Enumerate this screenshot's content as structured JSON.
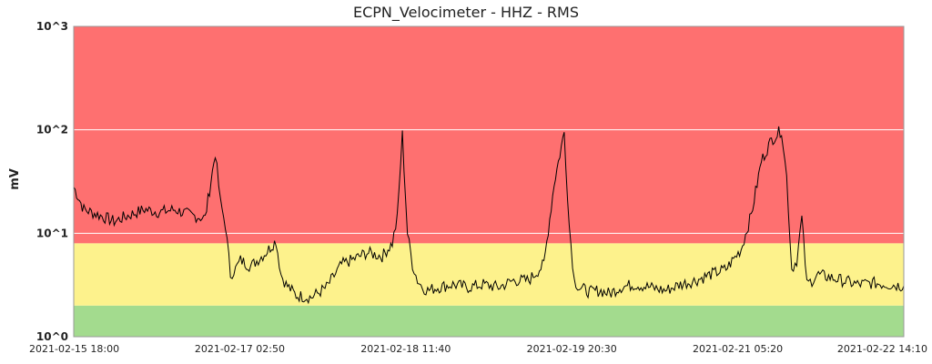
{
  "chart_data": {
    "type": "line",
    "title": "ECPN_Velocimeter - HHZ - RMS",
    "ylabel": "mV",
    "xlabel": "",
    "yscale": "log",
    "ylim": [
      1,
      1000
    ],
    "xlim": [
      "2021-02-15 18:00",
      "2021-02-22 14:10"
    ],
    "yticks": [
      {
        "value": 1,
        "label": "10^0"
      },
      {
        "value": 10,
        "label": "10^1"
      },
      {
        "value": 100,
        "label": "10^2"
      },
      {
        "value": 1000,
        "label": "10^3"
      }
    ],
    "xticks": [
      {
        "value": "2021-02-15 18:00",
        "label": "2021-02-15 18:00"
      },
      {
        "value": "2021-02-17 02:50",
        "label": "2021-02-17 02:50"
      },
      {
        "value": "2021-02-18 11:40",
        "label": "2021-02-18 11:40"
      },
      {
        "value": "2021-02-19 20:30",
        "label": "2021-02-19 20:30"
      },
      {
        "value": "2021-02-21 05:20",
        "label": "2021-02-21 05:20"
      },
      {
        "value": "2021-02-22 14:10",
        "label": "2021-02-22 14:10"
      }
    ],
    "bands": [
      {
        "from": 1,
        "to": 2,
        "color": "#a3db8e"
      },
      {
        "from": 2,
        "to": 8,
        "color": "#fdf28c"
      },
      {
        "from": 8,
        "to": 1000,
        "color": "#fe7070"
      }
    ],
    "grid": true,
    "line_color": "#000000",
    "series": [
      {
        "x": [
          "2021-02-15 18:00",
          "2021-02-15 20:00",
          "2021-02-15 23:00",
          "2021-02-16 02:00",
          "2021-02-16 05:00",
          "2021-02-16 08:00",
          "2021-02-16 11:00",
          "2021-02-16 14:00",
          "2021-02-16 17:00",
          "2021-02-16 20:00",
          "2021-02-16 22:00",
          "2021-02-16 23:00",
          "2021-02-17 00:00",
          "2021-02-17 01:00",
          "2021-02-17 02:00",
          "2021-02-17 03:00",
          "2021-02-17 05:00",
          "2021-02-17 08:00",
          "2021-02-17 10:00",
          "2021-02-17 11:00",
          "2021-02-17 12:00",
          "2021-02-17 14:00",
          "2021-02-17 17:00",
          "2021-02-17 20:00",
          "2021-02-17 23:00",
          "2021-02-18 01:00",
          "2021-02-18 04:00",
          "2021-02-18 07:00",
          "2021-02-18 09:00",
          "2021-02-18 10:00",
          "2021-02-18 11:00",
          "2021-02-18 12:00",
          "2021-02-18 13:00",
          "2021-02-18 14:00",
          "2021-02-18 15:00",
          "2021-02-18 16:00",
          "2021-02-18 18:00",
          "2021-02-18 21:00",
          "2021-02-19 00:00",
          "2021-02-19 03:00",
          "2021-02-19 06:00",
          "2021-02-19 09:00",
          "2021-02-19 12:00",
          "2021-02-19 15:00",
          "2021-02-19 17:00",
          "2021-02-19 19:00",
          "2021-02-19 20:00",
          "2021-02-19 21:00",
          "2021-02-19 22:00",
          "2021-02-20 00:00",
          "2021-02-20 02:00",
          "2021-02-20 04:00",
          "2021-02-20 06:00",
          "2021-02-20 09:00",
          "2021-02-20 12:00",
          "2021-02-20 15:00",
          "2021-02-20 18:00",
          "2021-02-20 21:00",
          "2021-02-21 00:00",
          "2021-02-21 03:00",
          "2021-02-21 06:00",
          "2021-02-21 08:00",
          "2021-02-21 10:00",
          "2021-02-21 12:00",
          "2021-02-21 14:00",
          "2021-02-21 15:00",
          "2021-02-21 16:00",
          "2021-02-21 17:00",
          "2021-02-21 18:00",
          "2021-02-21 19:00",
          "2021-02-21 20:00",
          "2021-02-21 21:00",
          "2021-02-21 23:00",
          "2021-02-22 02:00",
          "2021-02-22 05:00",
          "2021-02-22 08:00",
          "2021-02-22 11:00",
          "2021-02-22 14:10"
        ],
        "y": [
          28,
          17,
          15,
          13,
          15,
          17,
          16,
          17,
          15,
          14,
          60,
          20,
          12,
          4,
          4.5,
          5.5,
          4.8,
          6.5,
          8.5,
          4,
          3.2,
          2.5,
          2.4,
          3,
          5,
          5.5,
          6.5,
          6,
          8,
          14,
          90,
          10,
          5,
          3.5,
          3,
          2.8,
          3,
          3.2,
          3,
          3.2,
          3,
          3.5,
          3.5,
          5,
          30,
          95,
          12,
          3.5,
          3,
          2.7,
          2.8,
          2.6,
          3,
          3.2,
          3,
          2.8,
          3.2,
          3.5,
          4,
          4.5,
          7,
          15,
          50,
          80,
          100,
          35,
          4.5,
          5.5,
          14,
          3.2,
          3.5,
          4,
          3.8,
          3.5,
          3.2,
          3.3,
          3.2,
          3.1
        ]
      }
    ]
  }
}
